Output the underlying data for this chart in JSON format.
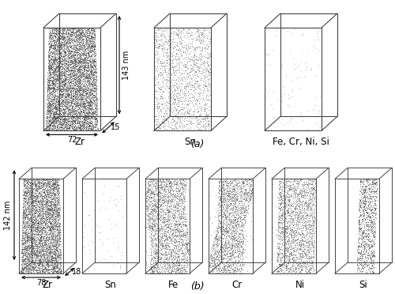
{
  "bg_color": "#ffffff",
  "panel_a_labels": [
    "Zr",
    "Sn",
    "Fe, Cr, Ni, Si"
  ],
  "panel_b_labels": [
    "Zr",
    "Sn",
    "Fe",
    "Cr",
    "Ni",
    "Si"
  ],
  "panel_a_label": "(a)",
  "panel_b_label": "(b)",
  "dim_a_h": "143 nm",
  "dim_a_w": "72",
  "dim_a_d": "15",
  "dim_b_h": "142 nm",
  "dim_b_w": "78",
  "dim_b_d": "18",
  "line_color": "#444444",
  "dot_color": "#303030",
  "font_size_label": 8.5,
  "font_size_dims": 7,
  "font_size_panel": 9
}
